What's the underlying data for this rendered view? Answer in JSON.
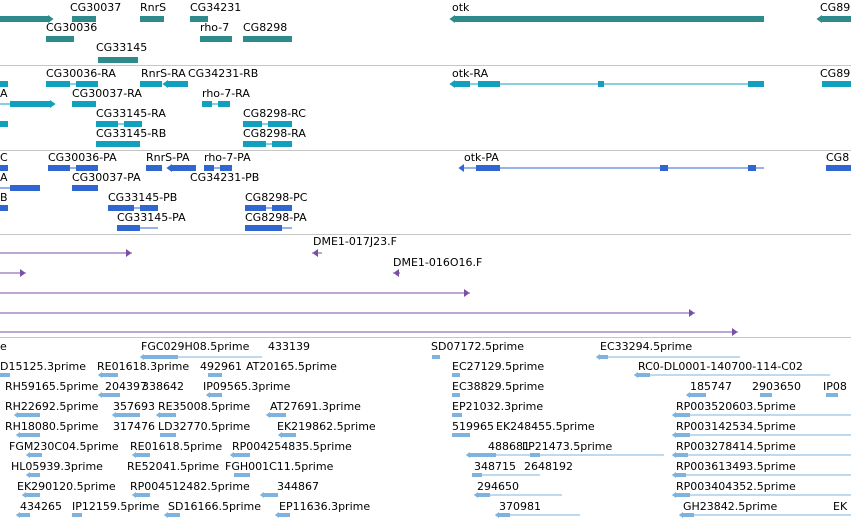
{
  "colors": {
    "gene": "#2e8b8b",
    "transcript": "#11a0bd",
    "cds": "#2f66d0",
    "bac": "#7a4fa6",
    "est": "#7fb3df",
    "divider": "#c6c6c6"
  },
  "tracks": {
    "genes": [
      {
        "name": "CG30037"
      },
      {
        "name": "RnrS"
      },
      {
        "name": "CG34231"
      },
      {
        "name": "otk"
      },
      {
        "name": "CG89"
      },
      {
        "name": "CG30036"
      },
      {
        "name": "rho-7"
      },
      {
        "name": "CG8298"
      },
      {
        "name": "CG33145"
      }
    ],
    "transcripts": [
      {
        "name": "CG30036-RA"
      },
      {
        "name": "RnrS-RA"
      },
      {
        "name": "CG34231-RB"
      },
      {
        "name": "otk-RA"
      },
      {
        "name": "CG89"
      },
      {
        "name": "CG30037-RA"
      },
      {
        "name": "rho-7-RA"
      },
      {
        "name": "CG33145-RA"
      },
      {
        "name": "CG8298-RC"
      },
      {
        "name": "CG33145-RB"
      },
      {
        "name": "CG8298-RA"
      },
      {
        "name": "A"
      }
    ],
    "proteins": [
      {
        "name": "C"
      },
      {
        "name": "CG30036-PA"
      },
      {
        "name": "RnrS-PA"
      },
      {
        "name": "rho-7-PA"
      },
      {
        "name": "otk-PA"
      },
      {
        "name": "CG8"
      },
      {
        "name": "A"
      },
      {
        "name": "CG30037-PA"
      },
      {
        "name": "CG34231-PB"
      },
      {
        "name": "B"
      },
      {
        "name": "CG33145-PB"
      },
      {
        "name": "CG8298-PC"
      },
      {
        "name": "CG33145-PA"
      },
      {
        "name": "CG8298-PA"
      }
    ],
    "bac_ends": [
      {
        "name": "DME1-017J23.F"
      },
      {
        "name": "DME1-016O16.F"
      }
    ],
    "ests": [
      {
        "name": "e"
      },
      {
        "name": "FGC029H08.5prime"
      },
      {
        "name": "433139"
      },
      {
        "name": "SD07172.5prime"
      },
      {
        "name": "EC33294.5prime"
      },
      {
        "name": "D15125.3prime"
      },
      {
        "name": "RE01618.3prime"
      },
      {
        "name": "492961"
      },
      {
        "name": "AT20165.5prime"
      },
      {
        "name": "EC27129.5prime"
      },
      {
        "name": "RC0-DL0001-140700-114-C02"
      },
      {
        "name": "RH59165.5prime"
      },
      {
        "name": "204397"
      },
      {
        "name": "338642"
      },
      {
        "name": "IP09565.3prime"
      },
      {
        "name": "EC38829.5prime"
      },
      {
        "name": "185747"
      },
      {
        "name": "2903650"
      },
      {
        "name": "IP08"
      },
      {
        "name": "RH22692.5prime"
      },
      {
        "name": "357693"
      },
      {
        "name": "RE35008.5prime"
      },
      {
        "name": "AT27691.3prime"
      },
      {
        "name": "EP21032.3prime"
      },
      {
        "name": "RP003520603.5prime"
      },
      {
        "name": "RH18080.5prime"
      },
      {
        "name": "317476"
      },
      {
        "name": "LD32770.5prime"
      },
      {
        "name": "EK219862.5prime"
      },
      {
        "name": "519965"
      },
      {
        "name": "EK248455.5prime"
      },
      {
        "name": "RP003142534.5prime"
      },
      {
        "name": "FGM230C04.5prime"
      },
      {
        "name": "RE01618.5prime"
      },
      {
        "name": "RP004254835.5prime"
      },
      {
        "name": "488681"
      },
      {
        "name": "LP21473.5prime"
      },
      {
        "name": "RP003278414.5prime"
      },
      {
        "name": "HL05939.3prime"
      },
      {
        "name": "RE52041.5prime"
      },
      {
        "name": "FGH001C11.5prime"
      },
      {
        "name": "348715"
      },
      {
        "name": "2648192"
      },
      {
        "name": "RP003613493.5prime"
      },
      {
        "name": "EK290120.5prime"
      },
      {
        "name": "RP004512482.5prime"
      },
      {
        "name": "344867"
      },
      {
        "name": "294650"
      },
      {
        "name": "RP003404352.5prime"
      },
      {
        "name": "434265"
      },
      {
        "name": "IP12159.5prime"
      },
      {
        "name": "SD16166.5prime"
      },
      {
        "name": "EP11636.3prime"
      },
      {
        "name": "370981"
      },
      {
        "name": "GH23842.5prime"
      },
      {
        "name": "EK"
      }
    ]
  }
}
